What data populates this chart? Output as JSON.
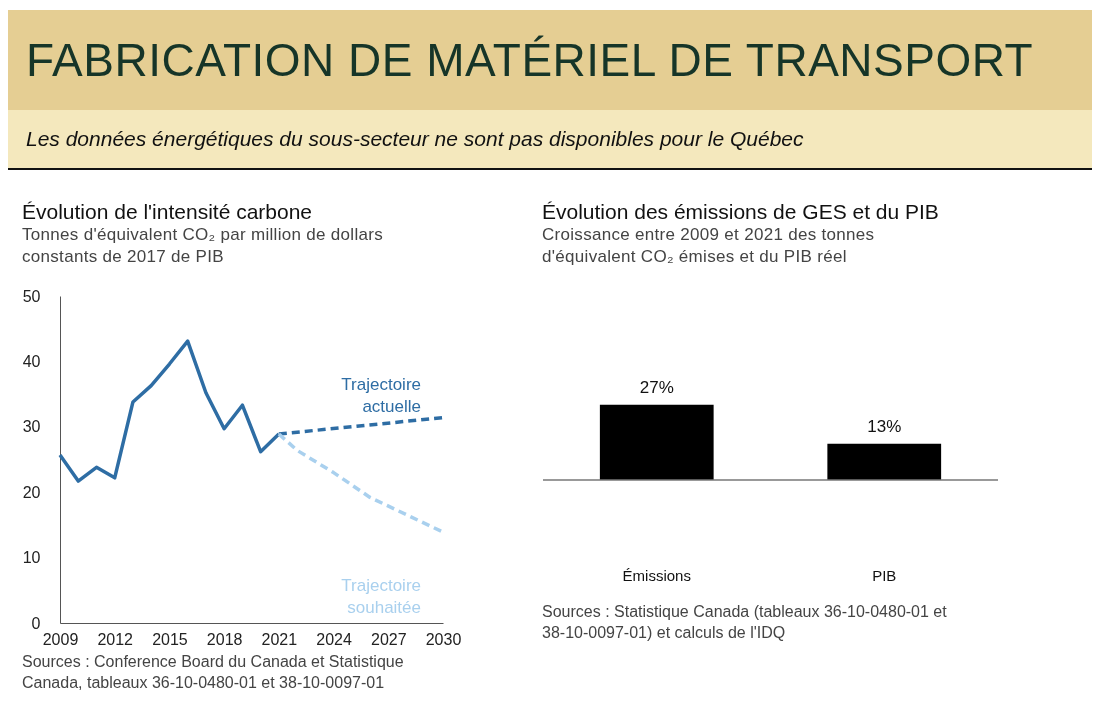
{
  "chart_data": [
    {
      "type": "other",
      "title": "FABRICATION DE MATÉRIEL DE TRANSPORT",
      "subtitle": "Les données énergétiques du sous-secteur ne sont pas disponibles pour le Québec"
    },
    {
      "type": "line",
      "title": "Évolution de l'intensité carbone",
      "subtitle": "Tonnes d'équivalent CO₂ par million de dollars constants de 2017 de PIB",
      "xlim": [
        2009,
        2030
      ],
      "xticks": [
        2009,
        2012,
        2015,
        2018,
        2021,
        2024,
        2027,
        2030
      ],
      "ylim": [
        0,
        50
      ],
      "yticks": [
        0,
        10,
        20,
        30,
        40,
        50
      ],
      "series": [
        {
          "color": "#2e6da4",
          "line_style": "solid",
          "x": [
            2009,
            2010,
            2011,
            2012,
            2013,
            2014,
            2015,
            2016,
            2017,
            2018,
            2019,
            2020,
            2021
          ],
          "values": [
            25.7,
            21.7,
            23.8,
            22.2,
            33.8,
            36.3,
            39.6,
            43.1,
            35.2,
            29.7,
            33.3,
            26.2,
            28.9
          ]
        },
        {
          "name": "Trajectoire actuelle",
          "color": "#2e6da4",
          "line_style": "dashed",
          "x": [
            2021,
            2030
          ],
          "values": [
            28.9,
            31.4
          ]
        },
        {
          "name": "Trajectoire souhaitée",
          "color": "#a9d0ee",
          "line_style": "dashed",
          "x": [
            2021,
            2022,
            2024,
            2026,
            2030
          ],
          "values": [
            28.9,
            26.4,
            23.0,
            19.2,
            13.9
          ]
        }
      ],
      "annotations": [
        "Sources : Conference Board du Canada et Statistique Canada, tableaux 36-10-0480-01 et 38-10-0097-01"
      ]
    },
    {
      "type": "bar",
      "title": "Évolution des émissions de GES et du PIB",
      "subtitle": "Croissance entre 2009 et 2021 des tonnes d'équivalent CO₂ émises et du PIB réel",
      "categories": [
        "Émissions",
        "PIB"
      ],
      "values": [
        27,
        13
      ],
      "value_labels": [
        "27%",
        "13%"
      ],
      "color": "#000000",
      "tick_labels": "x",
      "annotations": [
        "Sources : Statistique Canada (tableaux 36-10-0480-01 et 38-10-0097-01) et calculs de l'IDQ"
      ]
    }
  ]
}
